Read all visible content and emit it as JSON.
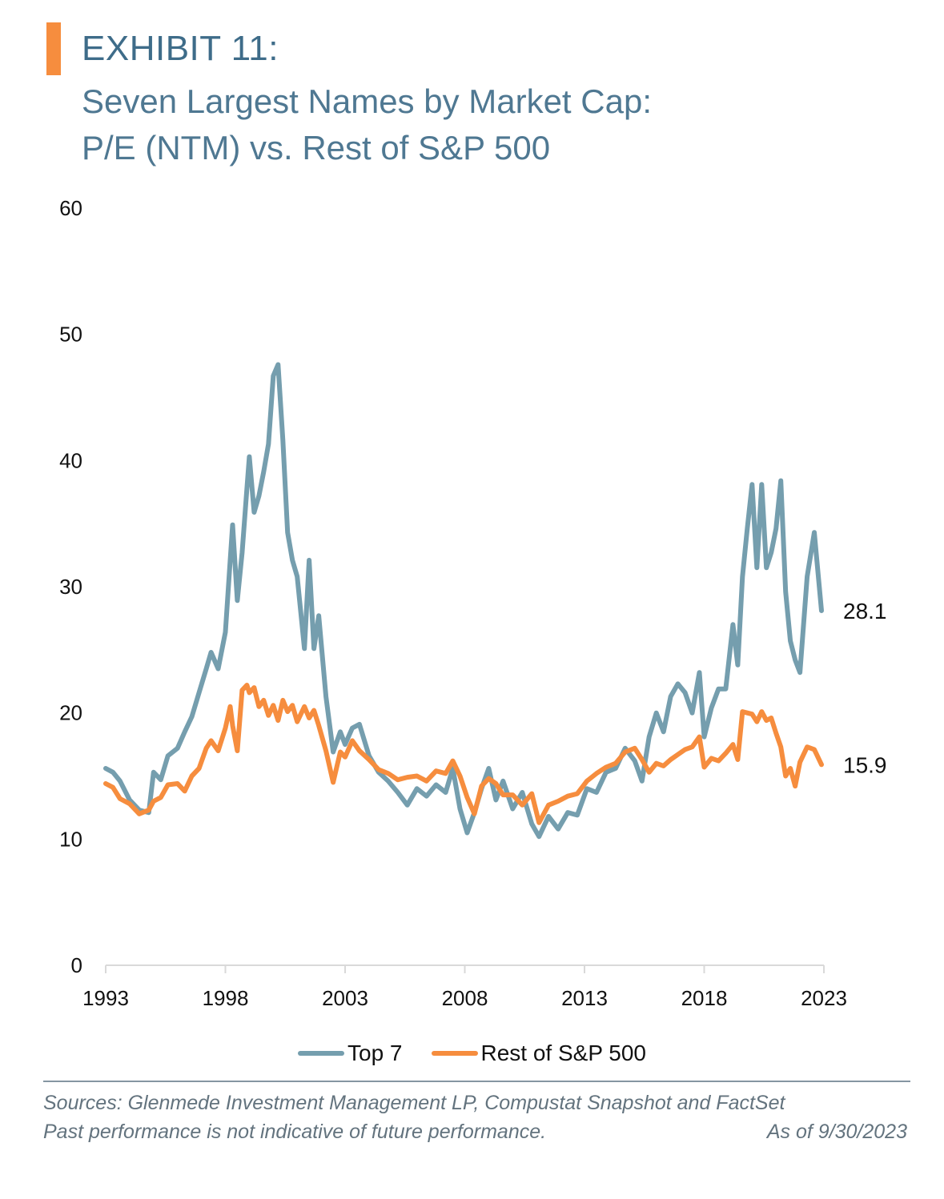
{
  "header": {
    "exhibit": "EXHIBIT 11:",
    "subtitle_line1": "Seven Largest Names by Market Cap:",
    "subtitle_line2": "P/E (NTM) vs. Rest of S&P 500",
    "accent_color": "#F68D3E",
    "title_color": "#3E6C89"
  },
  "legend": {
    "items": [
      {
        "label": "Top 7",
        "color": "#759EAE"
      },
      {
        "label": "Rest of S&P 500",
        "color": "#F68D3E"
      }
    ]
  },
  "footer": {
    "sources": "Sources: Glenmede Investment Management LP, Compustat Snapshot and FactSet",
    "disclaimer": "Past performance is not indicative of future performance.",
    "as_of": "As of 9/30/2023"
  },
  "chart_data": {
    "type": "line",
    "title": "Seven Largest Names by Market Cap: P/E (NTM) vs. Rest of S&P 500",
    "xlabel": "",
    "ylabel": "",
    "xlim": [
      1993,
      2023
    ],
    "ylim": [
      0,
      60
    ],
    "x_ticks": [
      1993,
      1998,
      2003,
      2008,
      2013,
      2018,
      2023
    ],
    "y_ticks": [
      0,
      10,
      20,
      30,
      40,
      50,
      60
    ],
    "grid": false,
    "legend_position": "bottom",
    "end_labels": [
      {
        "series": "Top 7",
        "value": "28.1"
      },
      {
        "series": "Rest of S&P 500",
        "value": "15.9"
      }
    ],
    "series": [
      {
        "name": "Top 7",
        "color": "#759EAE",
        "x": [
          1993.0,
          1993.3,
          1993.6,
          1994.0,
          1994.4,
          1994.8,
          1995.0,
          1995.3,
          1995.6,
          1996.0,
          1996.3,
          1996.6,
          1996.9,
          1997.2,
          1997.4,
          1997.7,
          1998.0,
          1998.2,
          1998.3,
          1998.5,
          1998.7,
          1998.9,
          1999.0,
          1999.2,
          1999.4,
          1999.6,
          1999.8,
          2000.0,
          2000.2,
          2000.4,
          2000.6,
          2000.8,
          2001.0,
          2001.3,
          2001.5,
          2001.7,
          2001.9,
          2002.2,
          2002.5,
          2002.8,
          2003.0,
          2003.3,
          2003.6,
          2004.0,
          2004.4,
          2004.8,
          2005.2,
          2005.6,
          2006.0,
          2006.4,
          2006.8,
          2007.2,
          2007.5,
          2007.8,
          2008.1,
          2008.4,
          2008.7,
          2009.0,
          2009.3,
          2009.6,
          2010.0,
          2010.4,
          2010.8,
          2011.1,
          2011.5,
          2011.9,
          2012.3,
          2012.7,
          2013.1,
          2013.5,
          2013.9,
          2014.3,
          2014.7,
          2015.1,
          2015.4,
          2015.7,
          2016.0,
          2016.3,
          2016.6,
          2016.9,
          2017.2,
          2017.5,
          2017.8,
          2018.0,
          2018.3,
          2018.6,
          2018.9,
          2019.2,
          2019.4,
          2019.6,
          2019.8,
          2020.0,
          2020.2,
          2020.4,
          2020.6,
          2020.8,
          2021.0,
          2021.2,
          2021.4,
          2021.6,
          2021.8,
          2022.0,
          2022.3,
          2022.6,
          2022.9
        ],
        "values": [
          15.6,
          15.3,
          14.6,
          13.1,
          12.3,
          12.1,
          15.3,
          14.7,
          16.6,
          17.2,
          18.5,
          19.7,
          21.6,
          23.5,
          24.8,
          23.5,
          26.4,
          32.1,
          34.9,
          28.9,
          32.7,
          37.8,
          40.3,
          35.9,
          37.2,
          39.1,
          41.3,
          46.7,
          47.6,
          41.6,
          34.3,
          32.1,
          30.8,
          25.1,
          32.1,
          25.1,
          27.7,
          21.3,
          16.9,
          18.5,
          17.5,
          18.8,
          19.1,
          16.6,
          15.3,
          14.6,
          13.7,
          12.7,
          14.0,
          13.4,
          14.3,
          13.7,
          15.6,
          12.4,
          10.5,
          12.1,
          14.0,
          15.6,
          13.1,
          14.6,
          12.4,
          13.7,
          11.2,
          10.2,
          11.8,
          10.8,
          12.1,
          11.9,
          14.0,
          13.7,
          15.3,
          15.6,
          17.2,
          16.2,
          14.6,
          18.1,
          20.0,
          18.5,
          21.3,
          22.3,
          21.6,
          20.0,
          23.2,
          18.1,
          20.4,
          21.9,
          21.9,
          27.0,
          23.8,
          30.8,
          34.6,
          38.1,
          31.5,
          38.1,
          31.5,
          32.7,
          34.6,
          38.4,
          29.6,
          25.7,
          24.2,
          23.2,
          30.8,
          34.3,
          28.1
        ]
      },
      {
        "name": "Rest of S&P 500",
        "color": "#F68D3E",
        "x": [
          1993.0,
          1993.3,
          1993.6,
          1994.0,
          1994.4,
          1994.8,
          1995.0,
          1995.3,
          1995.6,
          1996.0,
          1996.3,
          1996.6,
          1996.9,
          1997.2,
          1997.4,
          1997.7,
          1998.0,
          1998.2,
          1998.3,
          1998.5,
          1998.7,
          1998.9,
          1999.0,
          1999.2,
          1999.4,
          1999.6,
          1999.8,
          2000.0,
          2000.2,
          2000.4,
          2000.6,
          2000.8,
          2001.0,
          2001.3,
          2001.5,
          2001.7,
          2001.9,
          2002.2,
          2002.5,
          2002.8,
          2003.0,
          2003.3,
          2003.6,
          2004.0,
          2004.4,
          2004.8,
          2005.2,
          2005.6,
          2006.0,
          2006.4,
          2006.8,
          2007.2,
          2007.5,
          2007.8,
          2008.1,
          2008.4,
          2008.7,
          2009.0,
          2009.3,
          2009.6,
          2010.0,
          2010.4,
          2010.8,
          2011.1,
          2011.5,
          2011.9,
          2012.3,
          2012.7,
          2013.1,
          2013.5,
          2013.9,
          2014.3,
          2014.7,
          2015.1,
          2015.4,
          2015.7,
          2016.0,
          2016.3,
          2016.6,
          2016.9,
          2017.2,
          2017.5,
          2017.8,
          2018.0,
          2018.3,
          2018.6,
          2018.9,
          2019.2,
          2019.4,
          2019.6,
          2019.8,
          2020.0,
          2020.2,
          2020.4,
          2020.6,
          2020.8,
          2021.0,
          2021.2,
          2021.4,
          2021.6,
          2021.8,
          2022.0,
          2022.3,
          2022.6,
          2022.9
        ],
        "values": [
          14.4,
          14.1,
          13.2,
          12.8,
          12.0,
          12.3,
          13.0,
          13.3,
          14.3,
          14.4,
          13.8,
          15.0,
          15.6,
          17.2,
          17.8,
          17.0,
          18.8,
          20.5,
          19.0,
          17.0,
          21.8,
          22.2,
          21.6,
          22.0,
          20.5,
          21.0,
          19.8,
          20.6,
          19.4,
          21.0,
          20.1,
          20.6,
          19.3,
          20.5,
          19.6,
          20.2,
          19.0,
          17.0,
          14.5,
          16.9,
          16.5,
          17.8,
          17.0,
          16.3,
          15.5,
          15.2,
          14.7,
          14.9,
          15.0,
          14.6,
          15.4,
          15.2,
          16.2,
          15.0,
          13.3,
          12.0,
          14.2,
          14.8,
          14.4,
          13.5,
          13.5,
          12.7,
          13.6,
          11.3,
          12.7,
          13.0,
          13.4,
          13.6,
          14.6,
          15.2,
          15.7,
          16.0,
          16.9,
          17.2,
          16.3,
          15.3,
          16.0,
          15.8,
          16.3,
          16.7,
          17.1,
          17.3,
          18.1,
          15.7,
          16.4,
          16.2,
          16.8,
          17.5,
          16.3,
          20.1,
          20.0,
          19.9,
          19.3,
          20.1,
          19.4,
          19.6,
          18.4,
          17.3,
          15.0,
          15.6,
          14.2,
          16.1,
          17.3,
          17.1,
          15.9
        ]
      }
    ]
  }
}
